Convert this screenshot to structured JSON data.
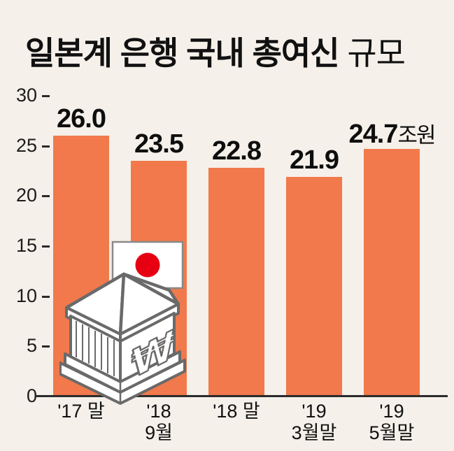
{
  "title": {
    "main": "일본계 은행 국내 총여신",
    "suffix": " 규모"
  },
  "chart_data": {
    "type": "bar",
    "title": "일본계 은행 국내 총여신 규모",
    "unit": "조원",
    "categories": [
      "'17 말",
      "'18 9월",
      "'18 말",
      "'19 3월말",
      "'19 5월말"
    ],
    "category_lines": [
      [
        "'17 말"
      ],
      [
        "'18",
        "9월"
      ],
      [
        "'18 말"
      ],
      [
        "'19",
        "3월말"
      ],
      [
        "'19",
        "5월말"
      ]
    ],
    "values": [
      26.0,
      23.5,
      22.8,
      21.9,
      24.7
    ],
    "value_labels": [
      {
        "num": "26.0",
        "suffix": ""
      },
      {
        "num": "23.5",
        "suffix": ""
      },
      {
        "num": "22.8",
        "suffix": ""
      },
      {
        "num": "21.9",
        "suffix": ""
      },
      {
        "num": "24.7",
        "suffix": "조원"
      }
    ],
    "ylim": [
      0,
      30
    ],
    "yticks": [
      0,
      5,
      10,
      15,
      20,
      25,
      30
    ],
    "grid": false,
    "legend": null,
    "bar_color": "#f1794b",
    "background_color": "#f5f0e9",
    "axis_color": "#2b2b2b"
  },
  "illustration": {
    "name": "japanese-bank-building",
    "flag": "japan-flag",
    "symbol": "₩",
    "flag_red": "#e60012",
    "outline_gray": "#6a6a6a"
  }
}
